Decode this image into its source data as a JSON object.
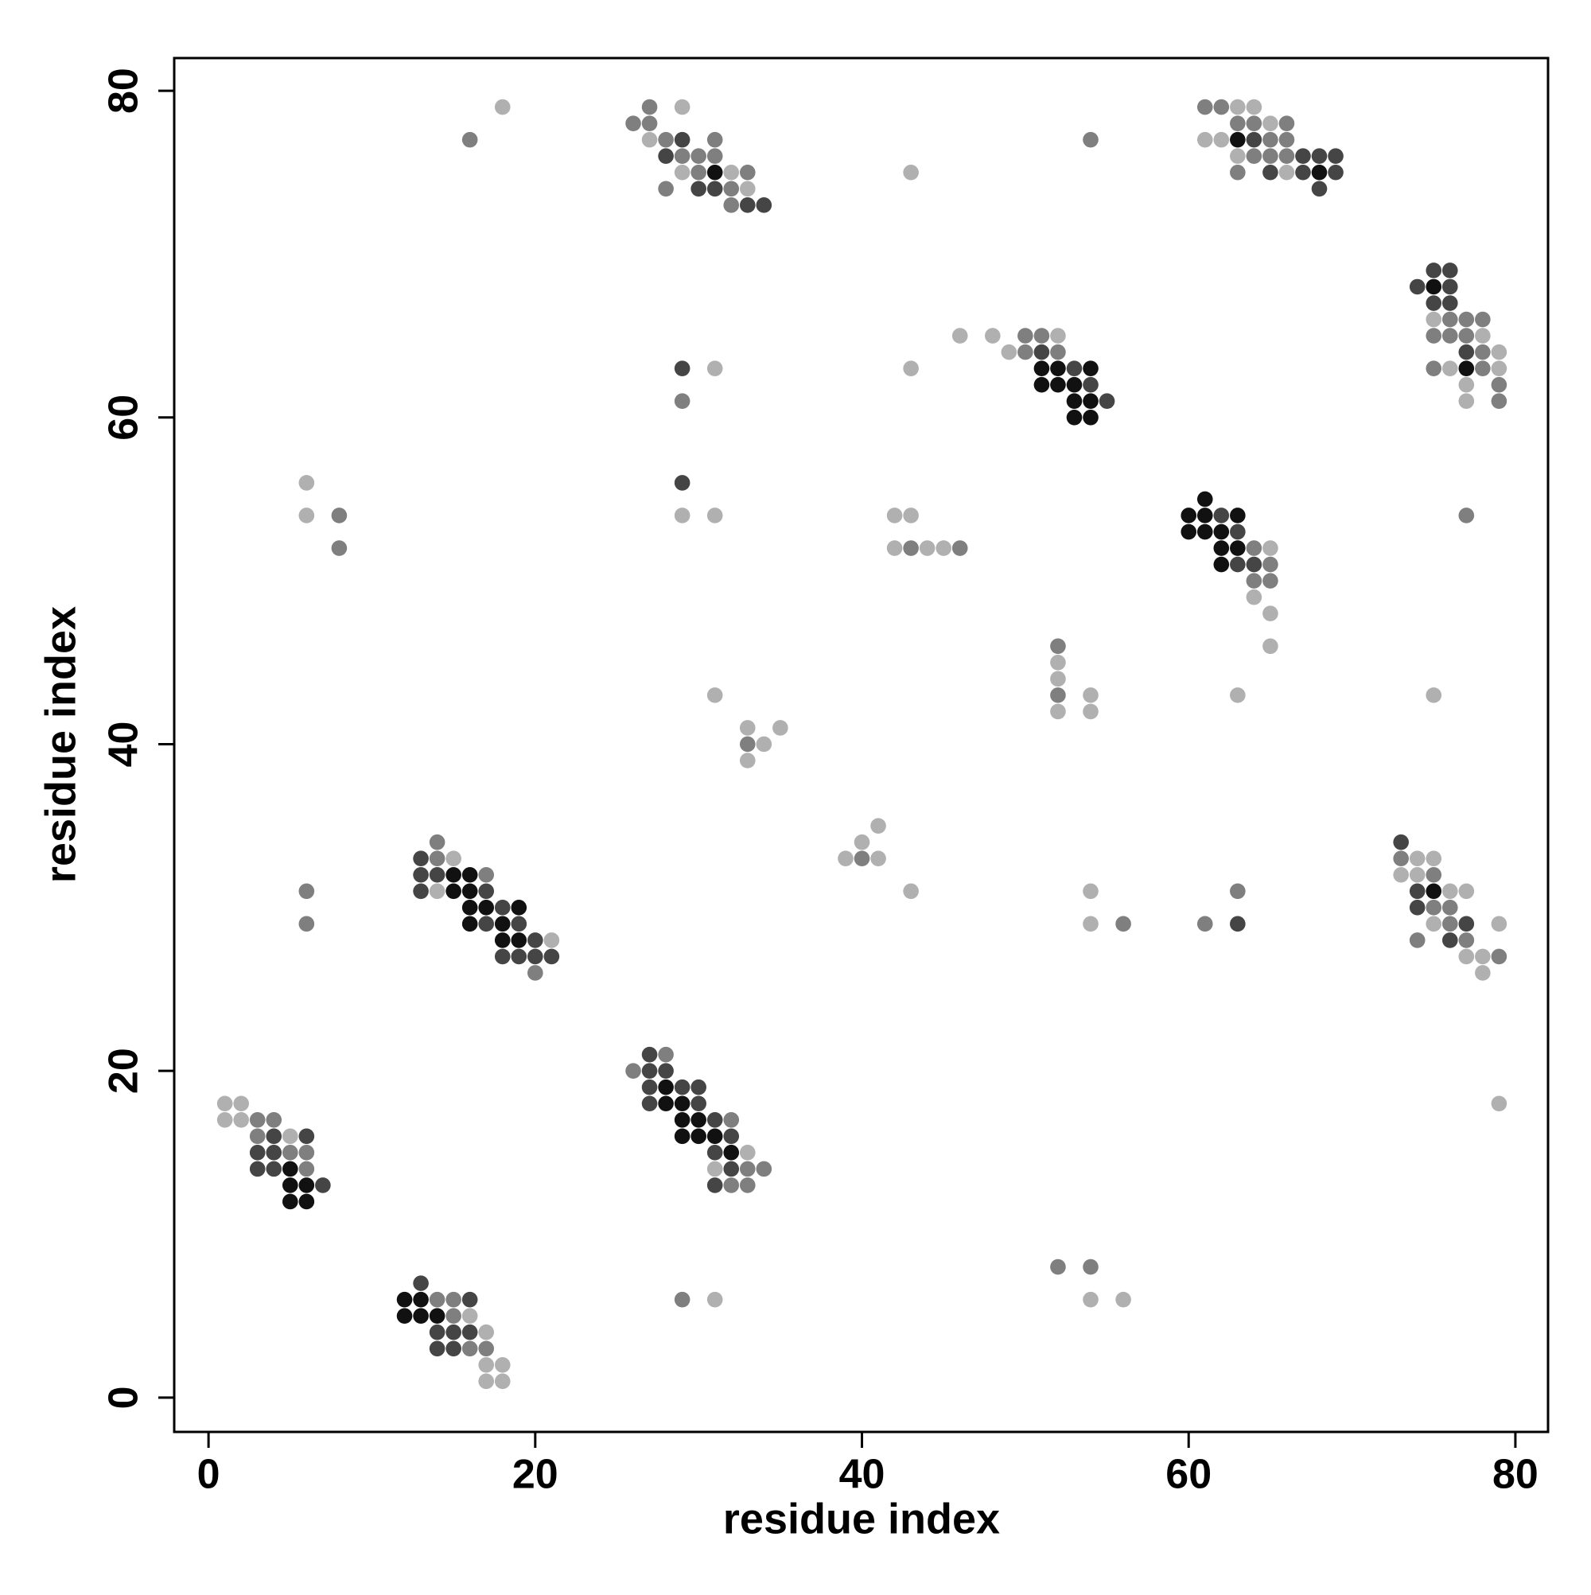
{
  "chart_data": {
    "type": "scatter",
    "xlabel": "residue index",
    "ylabel": "residue index",
    "xlim": [
      -2.1,
      82
    ],
    "ylim": [
      -2.1,
      82
    ],
    "xticks": [
      0,
      20,
      40,
      60,
      80
    ],
    "yticks": [
      0,
      20,
      40,
      60,
      80
    ],
    "grid": false,
    "series": [
      {
        "color": "#111111",
        "x": [
          5,
          5,
          6,
          5,
          6,
          12,
          13,
          12,
          13,
          14,
          28,
          28,
          29,
          29,
          30,
          29,
          30,
          31,
          32,
          15,
          16,
          15,
          16,
          16,
          17,
          19,
          16,
          18,
          18,
          19,
          75,
          61,
          60,
          61,
          63,
          60,
          61,
          62,
          62,
          63,
          62,
          51,
          52,
          54,
          51,
          52,
          53,
          53,
          54,
          53,
          54,
          75,
          77,
          31,
          63,
          68
        ],
        "values": [
          14,
          13,
          13,
          12,
          12,
          6,
          6,
          5,
          5,
          5,
          19,
          18,
          18,
          17,
          17,
          16,
          16,
          16,
          15,
          32,
          32,
          31,
          31,
          30,
          30,
          30,
          29,
          29,
          28,
          28,
          31,
          55,
          54,
          54,
          54,
          53,
          53,
          53,
          52,
          52,
          51,
          63,
          63,
          63,
          62,
          62,
          62,
          61,
          61,
          60,
          60,
          68,
          63,
          75,
          77,
          75
        ]
      },
      {
        "color": "#454545",
        "x": [
          6,
          4,
          3,
          4,
          3,
          4,
          7,
          13,
          16,
          14,
          15,
          16,
          14,
          15,
          27,
          27,
          28,
          27,
          29,
          30,
          27,
          30,
          31,
          32,
          31,
          32,
          31,
          13,
          13,
          14,
          13,
          17,
          18,
          17,
          19,
          20,
          18,
          19,
          20,
          21,
          63,
          73,
          74,
          74,
          77,
          76,
          62,
          63,
          63,
          64,
          29,
          51,
          53,
          54,
          55,
          29,
          75,
          76,
          74,
          76,
          75,
          76,
          77,
          29,
          28,
          30,
          31,
          33,
          34,
          64,
          67,
          68,
          69,
          65,
          67,
          69,
          68
        ],
        "values": [
          16,
          16,
          15,
          15,
          14,
          14,
          13,
          7,
          6,
          4,
          4,
          4,
          3,
          3,
          21,
          20,
          20,
          19,
          19,
          19,
          18,
          18,
          17,
          16,
          15,
          14,
          13,
          33,
          32,
          32,
          31,
          31,
          30,
          29,
          29,
          28,
          27,
          27,
          27,
          27,
          29,
          34,
          31,
          30,
          29,
          28,
          54,
          53,
          51,
          51,
          56,
          64,
          63,
          62,
          61,
          63,
          69,
          69,
          68,
          68,
          67,
          67,
          64,
          77,
          76,
          74,
          74,
          73,
          73,
          77,
          76,
          76,
          76,
          75,
          75,
          75,
          74
        ]
      },
      {
        "color": "#7f7f7f",
        "x": [
          3,
          4,
          3,
          5,
          6,
          6,
          14,
          15,
          15,
          16,
          17,
          29,
          52,
          54,
          28,
          26,
          32,
          33,
          34,
          32,
          33,
          14,
          14,
          17,
          20,
          6,
          6,
          40,
          56,
          61,
          63,
          73,
          75,
          75,
          76,
          76,
          74,
          77,
          79,
          33,
          52,
          52,
          64,
          65,
          64,
          65,
          8,
          8,
          43,
          46,
          77,
          50,
          51,
          50,
          52,
          29,
          76,
          77,
          78,
          75,
          76,
          77,
          78,
          75,
          78,
          79,
          79,
          27,
          26,
          27,
          16,
          28,
          31,
          29,
          30,
          31,
          30,
          33,
          28,
          32,
          32,
          54,
          61,
          62,
          63,
          64,
          66,
          65,
          66,
          64,
          65,
          66,
          63
        ],
        "values": [
          17,
          17,
          16,
          15,
          15,
          14,
          6,
          6,
          5,
          3,
          3,
          6,
          8,
          8,
          21,
          20,
          17,
          14,
          14,
          13,
          13,
          34,
          33,
          32,
          26,
          31,
          29,
          33,
          29,
          29,
          31,
          33,
          32,
          30,
          30,
          29,
          28,
          28,
          27,
          40,
          46,
          43,
          52,
          51,
          50,
          50,
          54,
          52,
          52,
          52,
          54,
          65,
          65,
          64,
          64,
          61,
          66,
          66,
          66,
          65,
          65,
          65,
          64,
          63,
          63,
          62,
          61,
          79,
          78,
          78,
          77,
          77,
          77,
          76,
          76,
          76,
          75,
          75,
          74,
          74,
          73,
          77,
          79,
          79,
          78,
          78,
          78,
          77,
          77,
          76,
          76,
          76,
          75
        ]
      },
      {
        "color": "#b0b0b0",
        "x": [
          1,
          2,
          1,
          2,
          5,
          16,
          17,
          17,
          18,
          17,
          18,
          31,
          54,
          56,
          79,
          33,
          31,
          15,
          14,
          21,
          41,
          40,
          39,
          41,
          43,
          54,
          54,
          74,
          75,
          73,
          74,
          76,
          77,
          75,
          79,
          77,
          78,
          78,
          33,
          33,
          34,
          35,
          31,
          52,
          52,
          52,
          54,
          54,
          63,
          75,
          65,
          64,
          65,
          65,
          6,
          6,
          29,
          31,
          42,
          43,
          42,
          44,
          45,
          46,
          48,
          52,
          49,
          31,
          43,
          75,
          78,
          79,
          76,
          79,
          77,
          77,
          29,
          18,
          27,
          29,
          32,
          33,
          43,
          63,
          64,
          65,
          61,
          62,
          63,
          66
        ],
        "values": [
          18,
          18,
          17,
          17,
          16,
          5,
          4,
          2,
          2,
          1,
          1,
          6,
          6,
          6,
          18,
          15,
          14,
          33,
          31,
          28,
          35,
          34,
          33,
          33,
          31,
          31,
          29,
          33,
          33,
          32,
          32,
          31,
          31,
          29,
          29,
          27,
          27,
          26,
          41,
          39,
          40,
          41,
          43,
          45,
          44,
          42,
          43,
          42,
          43,
          43,
          52,
          49,
          48,
          46,
          56,
          54,
          54,
          54,
          54,
          54,
          52,
          52,
          52,
          65,
          65,
          65,
          64,
          63,
          63,
          66,
          65,
          64,
          63,
          63,
          62,
          61,
          79,
          79,
          77,
          75,
          75,
          74,
          75,
          79,
          79,
          78,
          77,
          77,
          76,
          75
        ]
      }
    ]
  }
}
